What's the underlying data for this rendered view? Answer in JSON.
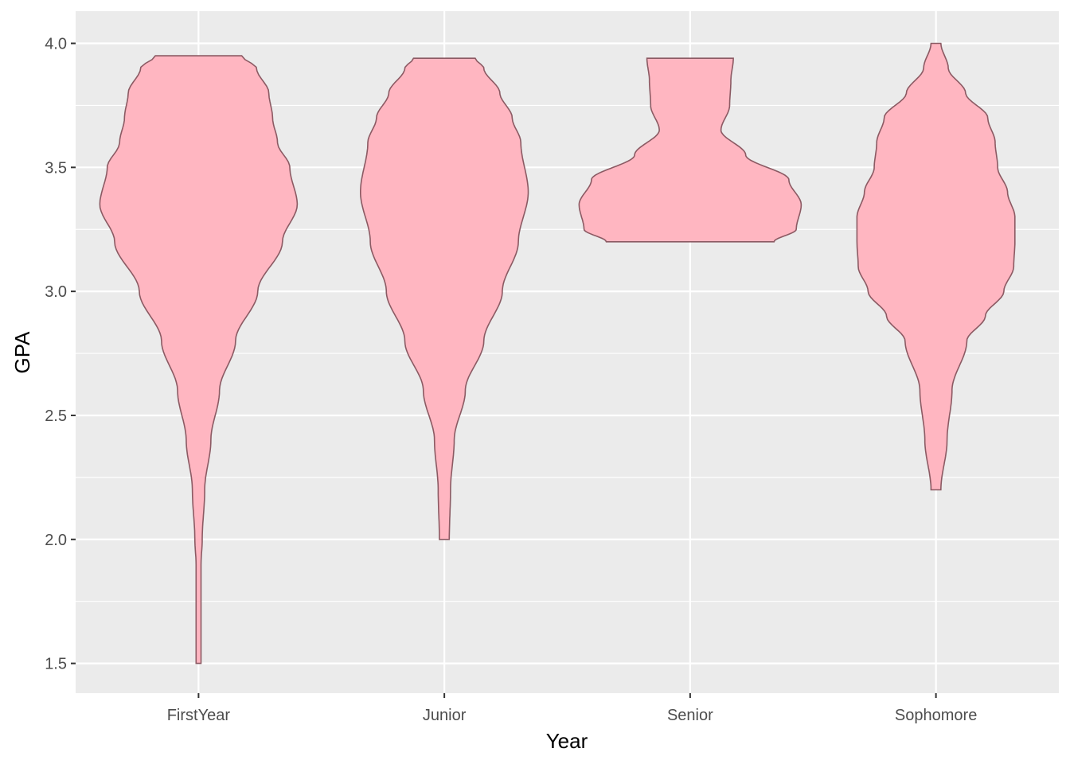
{
  "chart_data": {
    "type": "violin",
    "title": "",
    "xlabel": "Year",
    "ylabel": "GPA",
    "categories": [
      "FirstYear",
      "Junior",
      "Senior",
      "Sophomore"
    ],
    "ylim": [
      1.38,
      4.13
    ],
    "y_ticks": [
      1.5,
      2.0,
      2.5,
      3.0,
      3.5,
      4.0
    ],
    "y_tick_labels": [
      "1.5",
      "2.0",
      "2.5",
      "3.0",
      "3.5",
      "4.0"
    ],
    "grid": true,
    "legend": "none",
    "colors": {
      "fill": "#FFB6C1",
      "outline": "#8B5A63",
      "panel": "#EBEBEB",
      "grid": "#FFFFFF"
    },
    "violins": [
      {
        "name": "FirstYear",
        "min": 1.5,
        "max": 3.95,
        "profile": [
          [
            1.5,
            0.02
          ],
          [
            1.9,
            0.02
          ],
          [
            2.0,
            0.03
          ],
          [
            2.2,
            0.05
          ],
          [
            2.4,
            0.1
          ],
          [
            2.6,
            0.17
          ],
          [
            2.8,
            0.3
          ],
          [
            3.0,
            0.48
          ],
          [
            3.2,
            0.68
          ],
          [
            3.35,
            0.8
          ],
          [
            3.5,
            0.74
          ],
          [
            3.6,
            0.64
          ],
          [
            3.7,
            0.6
          ],
          [
            3.8,
            0.57
          ],
          [
            3.9,
            0.47
          ],
          [
            3.95,
            0.35
          ]
        ]
      },
      {
        "name": "Junior",
        "min": 2.0,
        "max": 3.94,
        "profile": [
          [
            2.0,
            0.04
          ],
          [
            2.2,
            0.05
          ],
          [
            2.4,
            0.08
          ],
          [
            2.6,
            0.17
          ],
          [
            2.8,
            0.32
          ],
          [
            3.0,
            0.47
          ],
          [
            3.2,
            0.6
          ],
          [
            3.4,
            0.68
          ],
          [
            3.6,
            0.62
          ],
          [
            3.7,
            0.55
          ],
          [
            3.8,
            0.45
          ],
          [
            3.9,
            0.32
          ],
          [
            3.94,
            0.25
          ]
        ]
      },
      {
        "name": "Senior",
        "min": 3.2,
        "max": 3.94,
        "profile": [
          [
            3.2,
            0.68
          ],
          [
            3.25,
            0.86
          ],
          [
            3.35,
            0.9
          ],
          [
            3.45,
            0.8
          ],
          [
            3.55,
            0.45
          ],
          [
            3.65,
            0.25
          ],
          [
            3.75,
            0.32
          ],
          [
            3.85,
            0.33
          ],
          [
            3.94,
            0.35
          ]
        ]
      },
      {
        "name": "Sophomore",
        "min": 2.2,
        "max": 4.0,
        "profile": [
          [
            2.2,
            0.04
          ],
          [
            2.4,
            0.09
          ],
          [
            2.6,
            0.13
          ],
          [
            2.8,
            0.25
          ],
          [
            2.9,
            0.4
          ],
          [
            3.0,
            0.55
          ],
          [
            3.1,
            0.63
          ],
          [
            3.2,
            0.64
          ],
          [
            3.3,
            0.64
          ],
          [
            3.4,
            0.58
          ],
          [
            3.5,
            0.5
          ],
          [
            3.6,
            0.48
          ],
          [
            3.7,
            0.42
          ],
          [
            3.8,
            0.24
          ],
          [
            3.9,
            0.1
          ],
          [
            4.0,
            0.04
          ]
        ]
      }
    ]
  }
}
